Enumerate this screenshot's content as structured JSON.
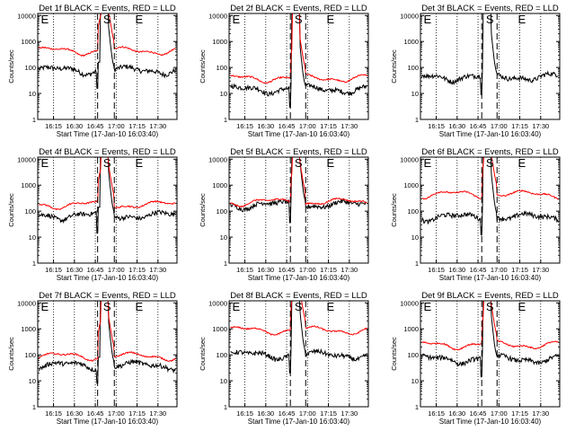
{
  "chart_data": [
    {
      "type": "line",
      "title": "Det 1f BLACK = Events, RED = LLD",
      "ylabel": "Counts/sec",
      "xlabel": "Start Time (17-Jan-10 16:03:40)",
      "x_ticks": [
        "16:15",
        "16:30",
        "16:45",
        "17:00",
        "17:15",
        "17:30"
      ],
      "y_ticks": [
        "1",
        "10",
        "100",
        "1000",
        "10000"
      ],
      "yscale": "log",
      "ylim": [
        1,
        12000
      ],
      "xlim_minutes": [
        0,
        100
      ],
      "markers": [
        {
          "label": "E",
          "at_minutes": 1
        },
        {
          "label": "S",
          "at_minutes": 47
        },
        {
          "label": "E",
          "at_minutes": 70
        }
      ],
      "dashed_x_minutes": [
        43,
        55
      ],
      "series": [
        {
          "name": "Events",
          "color": "#000000",
          "base": 80
        },
        {
          "name": "LLD",
          "color": "#ff0000",
          "base": 450
        }
      ]
    },
    {
      "type": "line",
      "title": "Det 2f BLACK = Events, RED = LLD",
      "ylabel": "Counts/sec",
      "xlabel": "Start Time (17-Jan-10 16:03:40)",
      "x_ticks": [
        "16:15",
        "16:30",
        "16:45",
        "17:00",
        "17:15",
        "17:30"
      ],
      "y_ticks": [
        "1",
        "10",
        "100",
        "1000",
        "10000"
      ],
      "yscale": "log",
      "ylim": [
        1,
        12000
      ],
      "xlim_minutes": [
        0,
        100
      ],
      "markers": [
        {
          "label": "E",
          "at_minutes": 1
        },
        {
          "label": "S",
          "at_minutes": 47
        },
        {
          "label": "E",
          "at_minutes": 70
        }
      ],
      "dashed_x_minutes": [
        44,
        55
      ],
      "series": [
        {
          "name": "Events",
          "color": "#000000",
          "base": 15
        },
        {
          "name": "LLD",
          "color": "#ff0000",
          "base": 40
        }
      ]
    },
    {
      "type": "line",
      "title": "Det 3f BLACK = Events, RED = LLD",
      "ylabel": "Counts/sec",
      "xlabel": "Start Time (17-Jan-10 16:03:40)",
      "x_ticks": [
        "16:15",
        "16:30",
        "16:45",
        "17:00",
        "17:15",
        "17:30"
      ],
      "y_ticks": [
        "1",
        "10",
        "100",
        "1000",
        "10000"
      ],
      "yscale": "log",
      "ylim": [
        1,
        12000
      ],
      "xlim_minutes": [
        0,
        100
      ],
      "markers": [
        {
          "label": "E",
          "at_minutes": 1
        },
        {
          "label": "S",
          "at_minutes": 47
        },
        {
          "label": "E",
          "at_minutes": 70
        }
      ],
      "dashed_x_minutes": [
        44,
        55
      ],
      "series": [
        {
          "name": "Events",
          "color": "#000000",
          "base": 45
        }
      ]
    },
    {
      "type": "line",
      "title": "Det 4f BLACK = Events, RED = LLD",
      "ylabel": "Counts/sec",
      "xlabel": "Start Time (17-Jan-10 16:03:40)",
      "x_ticks": [
        "16:15",
        "16:30",
        "16:45",
        "17:00",
        "17:15",
        "17:30"
      ],
      "y_ticks": [
        "1",
        "10",
        "100",
        "1000",
        "10000"
      ],
      "yscale": "log",
      "ylim": [
        1,
        12000
      ],
      "xlim_minutes": [
        0,
        100
      ],
      "markers": [
        {
          "label": "E",
          "at_minutes": 1
        },
        {
          "label": "S",
          "at_minutes": 47
        },
        {
          "label": "E",
          "at_minutes": 70
        }
      ],
      "dashed_x_minutes": [
        43,
        55
      ],
      "series": [
        {
          "name": "Events",
          "color": "#000000",
          "base": 70
        },
        {
          "name": "LLD",
          "color": "#ff0000",
          "base": 180
        }
      ]
    },
    {
      "type": "line",
      "title": "Det 5f BLACK = Events, RED = LLD",
      "ylabel": "Counts/sec",
      "xlabel": "Start Time (17-Jan-10 16:03:40)",
      "x_ticks": [
        "16:15",
        "16:30",
        "16:45",
        "17:00",
        "17:15",
        "17:30"
      ],
      "y_ticks": [
        "1",
        "10",
        "100",
        "1000",
        "10000"
      ],
      "yscale": "log",
      "ylim": [
        1,
        12000
      ],
      "xlim_minutes": [
        0,
        100
      ],
      "markers": [
        {
          "label": "S",
          "at_minutes": 47
        },
        {
          "label": "E",
          "at_minutes": 70
        }
      ],
      "dashed_x_minutes": [
        44,
        55
      ],
      "series": [
        {
          "name": "Events",
          "color": "#000000",
          "base": 180
        },
        {
          "name": "LLD",
          "color": "#ff0000",
          "base": 230
        }
      ]
    },
    {
      "type": "line",
      "title": "Det 6f BLACK = Events, RED = LLD",
      "ylabel": "Counts/sec",
      "xlabel": "Start Time (17-Jan-10 16:03:40)",
      "x_ticks": [
        "16:15",
        "16:30",
        "16:45",
        "17:00",
        "17:15",
        "17:30"
      ],
      "y_ticks": [
        "1",
        "10",
        "100",
        "1000",
        "10000"
      ],
      "yscale": "log",
      "ylim": [
        1,
        12000
      ],
      "xlim_minutes": [
        0,
        100
      ],
      "markers": [
        {
          "label": "E",
          "at_minutes": 1
        },
        {
          "label": "S",
          "at_minutes": 47
        },
        {
          "label": "E",
          "at_minutes": 70
        }
      ],
      "dashed_x_minutes": [
        44,
        55
      ],
      "series": [
        {
          "name": "Events",
          "color": "#000000",
          "base": 60
        },
        {
          "name": "LLD",
          "color": "#ff0000",
          "base": 450
        }
      ]
    },
    {
      "type": "line",
      "title": "Det 7f BLACK = Events, RED = LLD",
      "ylabel": "Counts/sec",
      "xlabel": "Start Time (17-Jan-10 16:03:40)",
      "x_ticks": [
        "16:15",
        "16:30",
        "16:45",
        "17:00",
        "17:15",
        "17:30"
      ],
      "y_ticks": [
        "1",
        "10",
        "100",
        "1000",
        "10000"
      ],
      "yscale": "log",
      "ylim": [
        1,
        12000
      ],
      "xlim_minutes": [
        0,
        100
      ],
      "markers": [
        {
          "label": "E",
          "at_minutes": 1
        },
        {
          "label": "S",
          "at_minutes": 47
        },
        {
          "label": "E",
          "at_minutes": 70
        }
      ],
      "dashed_x_minutes": [
        43,
        55
      ],
      "series": [
        {
          "name": "Events",
          "color": "#000000",
          "base": 40
        },
        {
          "name": "LLD",
          "color": "#ff0000",
          "base": 90
        }
      ]
    },
    {
      "type": "line",
      "title": "Det 8f BLACK = Events, RED = LLD",
      "ylabel": "Counts/sec",
      "xlabel": "Start Time (17-Jan-10 16:03:40)",
      "x_ticks": [
        "16:15",
        "16:30",
        "16:45",
        "17:00",
        "17:15",
        "17:30"
      ],
      "y_ticks": [
        "1",
        "10",
        "100",
        "1000",
        "10000"
      ],
      "yscale": "log",
      "ylim": [
        1,
        12000
      ],
      "xlim_minutes": [
        0,
        100
      ],
      "markers": [
        {
          "label": "E",
          "at_minutes": 1
        },
        {
          "label": "S",
          "at_minutes": 47
        },
        {
          "label": "E",
          "at_minutes": 70
        }
      ],
      "dashed_x_minutes": [
        44,
        55
      ],
      "series": [
        {
          "name": "Events",
          "color": "#000000",
          "base": 100
        },
        {
          "name": "LLD",
          "color": "#ff0000",
          "base": 900
        }
      ]
    },
    {
      "type": "line",
      "title": "Det 9f BLACK = Events, RED = LLD",
      "ylabel": "Counts/sec",
      "xlabel": "Start Time (17-Jan-10 16:03:40)",
      "x_ticks": [
        "16:15",
        "16:30",
        "16:45",
        "17:00",
        "17:15",
        "17:30"
      ],
      "y_ticks": [
        "1",
        "10",
        "100",
        "1000",
        "10000"
      ],
      "yscale": "log",
      "ylim": [
        1,
        12000
      ],
      "xlim_minutes": [
        0,
        100
      ],
      "markers": [
        {
          "label": "E",
          "at_minutes": 1
        },
        {
          "label": "S",
          "at_minutes": 47
        },
        {
          "label": "E",
          "at_minutes": 70
        }
      ],
      "dashed_x_minutes": [
        44,
        55
      ],
      "series": [
        {
          "name": "Events",
          "color": "#000000",
          "base": 70
        },
        {
          "name": "LLD",
          "color": "#ff0000",
          "base": 250
        }
      ]
    }
  ]
}
